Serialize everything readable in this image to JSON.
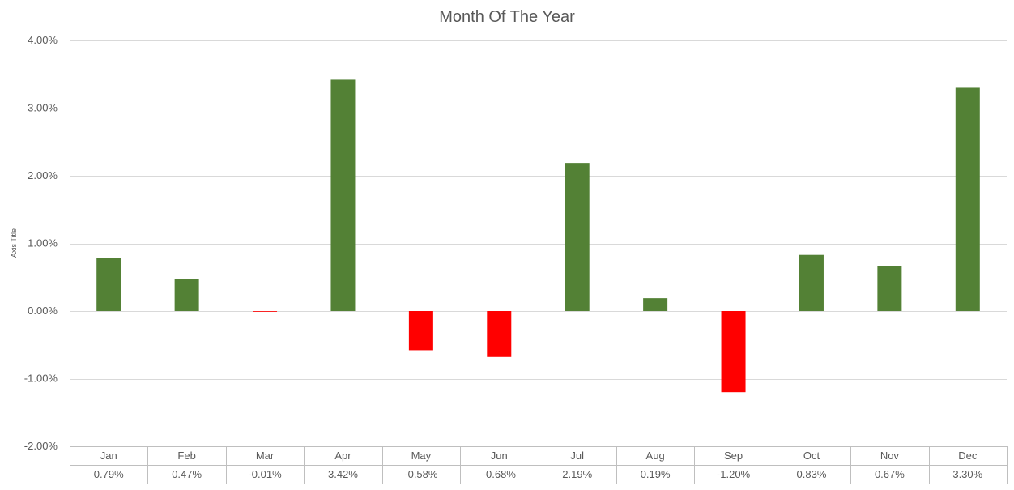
{
  "chart_data": {
    "type": "bar",
    "title": "Month Of The Year",
    "xlabel": "",
    "ylabel": "Axis Title",
    "categories": [
      "Jan",
      "Feb",
      "Mar",
      "Apr",
      "May",
      "Jun",
      "Jul",
      "Aug",
      "Sep",
      "Oct",
      "Nov",
      "Dec"
    ],
    "values": [
      0.79,
      0.47,
      -0.01,
      3.42,
      -0.58,
      -0.68,
      2.19,
      0.19,
      -1.2,
      0.83,
      0.67,
      3.3
    ],
    "value_labels": [
      "0.79%",
      "0.47%",
      "-0.01%",
      "3.42%",
      "-0.58%",
      "-0.68%",
      "2.19%",
      "0.19%",
      "-1.20%",
      "0.83%",
      "0.67%",
      "3.30%"
    ],
    "ylim": [
      -2,
      4
    ],
    "y_ticks": [
      4,
      3,
      2,
      1,
      0,
      -1,
      -2
    ],
    "y_tick_labels": [
      "4.00%",
      "3.00%",
      "2.00%",
      "1.00%",
      "0.00%",
      "-1.00%",
      "-2.00%"
    ],
    "grid": true,
    "legend": false,
    "data_table": true,
    "colors": {
      "positive": "#538135",
      "negative": "#ff0000",
      "gridline": "#d9d9d9",
      "axis_text": "#595959",
      "title_text": "#595959",
      "table_border": "#bfbfbf"
    }
  }
}
